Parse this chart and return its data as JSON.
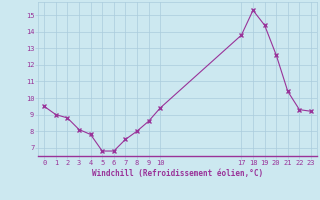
{
  "x": [
    0,
    1,
    2,
    3,
    4,
    5,
    6,
    7,
    8,
    9,
    10,
    17,
    18,
    19,
    20,
    21,
    22,
    23
  ],
  "y": [
    9.5,
    9.0,
    8.8,
    8.1,
    7.8,
    6.8,
    6.8,
    7.5,
    8.0,
    8.6,
    9.4,
    13.8,
    15.3,
    14.4,
    12.6,
    10.4,
    9.3,
    9.2
  ],
  "line_color": "#993399",
  "marker": "x",
  "marker_size": 3,
  "background_color": "#cce8f0",
  "grid_color": "#aaccdd",
  "tick_color": "#993399",
  "label_color": "#993399",
  "xlabel": "Windchill (Refroidissement éolien,°C)",
  "xticks": [
    0,
    1,
    2,
    3,
    4,
    5,
    6,
    7,
    8,
    9,
    10,
    17,
    18,
    19,
    20,
    21,
    22,
    23
  ],
  "yticks": [
    7,
    8,
    9,
    10,
    11,
    12,
    13,
    14,
    15
  ],
  "ylim": [
    6.5,
    15.8
  ],
  "xlim": [
    -0.5,
    23.5
  ],
  "figsize": [
    3.2,
    2.0
  ],
  "dpi": 100
}
